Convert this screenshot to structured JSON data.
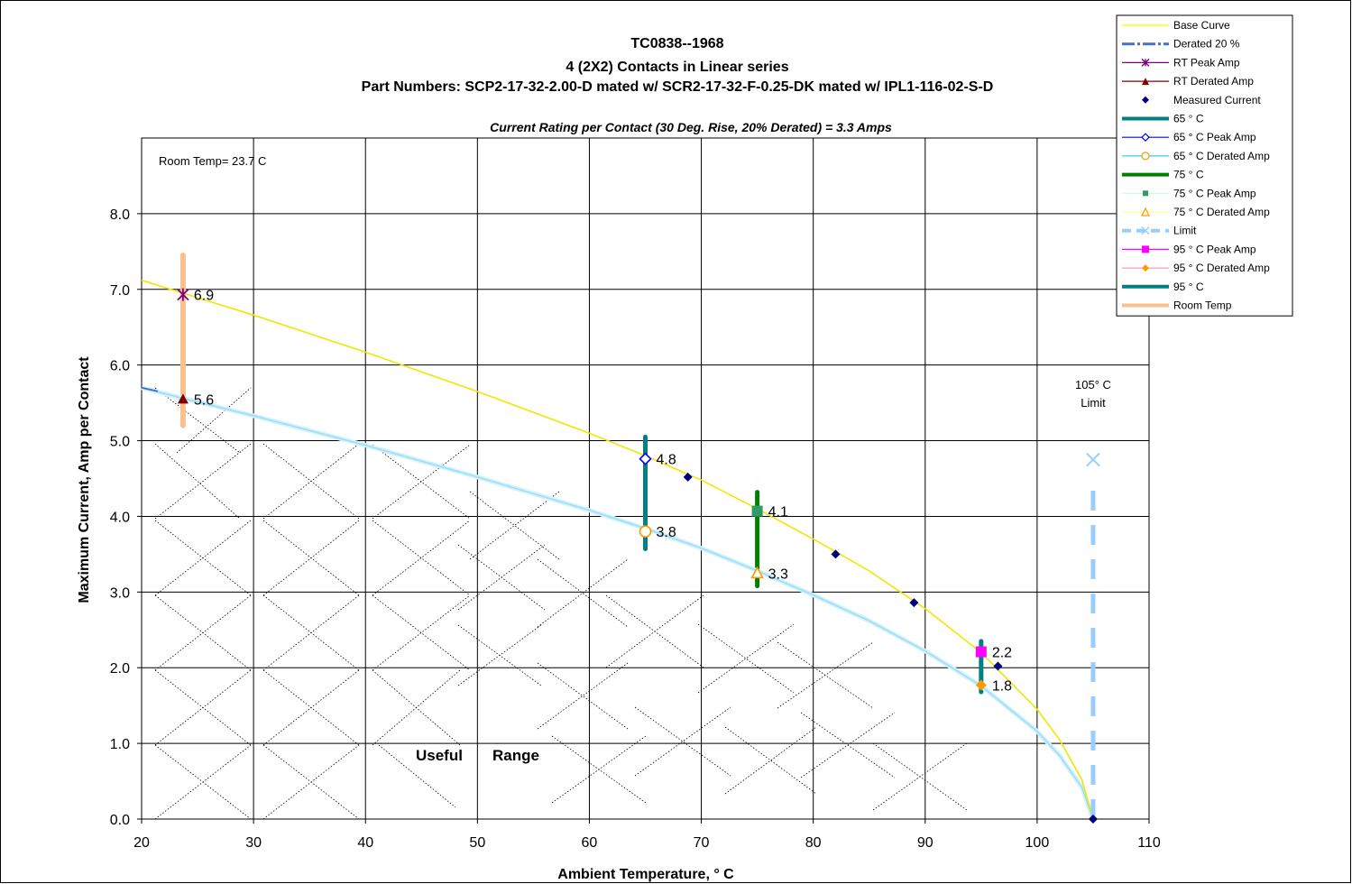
{
  "chart_data": {
    "type": "line",
    "title_lines": [
      "TC0838--1968",
      "4 (2X2) Contacts in Linear series",
      "Part Numbers: SCP2-17-32-2.00-D mated w/ SCR2-17-32-F-0.25-DK mated w/ IPL1-116-02-S-D"
    ],
    "subtitle": "Current Rating per Contact (30 Deg. Rise, 20% Derated)  = 3.3 Amps",
    "xlabel": "Ambient Temperature,  ° C",
    "ylabel": "Maximum Current, Amp per Contact",
    "xlim": [
      20,
      110
    ],
    "ylim": [
      0,
      9
    ],
    "x_ticks": [
      20,
      30,
      40,
      50,
      60,
      70,
      80,
      90,
      100,
      110
    ],
    "x_tick_labels": [
      "20",
      "30",
      "40",
      "50",
      "60",
      "70",
      "80",
      "90",
      "100",
      "110"
    ],
    "y_ticks": [
      0,
      1,
      2,
      3,
      4,
      5,
      6,
      7,
      8
    ],
    "y_tick_labels": [
      "0.0",
      "1.0",
      "2.0",
      "3.0",
      "4.0",
      "5.0",
      "6.0",
      "7.0",
      "8.0"
    ],
    "grid": true,
    "legend_position": "top-right",
    "room_temp_note": "Room Temp= 23.7 C",
    "limit_note_lines": [
      "105° C",
      "Limit"
    ],
    "useful_range_words": [
      "Useful",
      "Range"
    ],
    "base_curve": {
      "name": "Base Curve",
      "color": "#ffff00",
      "x": [
        20,
        23.7,
        30,
        40,
        50,
        60,
        65,
        70,
        75,
        80,
        85,
        90,
        95,
        100,
        102,
        104,
        105
      ],
      "y": [
        7.12,
        6.95,
        6.66,
        6.17,
        5.65,
        5.1,
        4.8,
        4.48,
        4.1,
        3.7,
        3.28,
        2.78,
        2.2,
        1.45,
        1.05,
        0.52,
        0
      ]
    },
    "derated_curve": {
      "name": "Derated 20 %",
      "color": "#b8e8f8",
      "x": [
        20,
        23.7,
        30,
        40,
        50,
        60,
        65,
        70,
        75,
        80,
        85,
        90,
        95,
        100,
        102,
        104,
        105
      ],
      "y": [
        5.7,
        5.56,
        5.33,
        4.94,
        4.52,
        4.08,
        3.84,
        3.58,
        3.28,
        2.96,
        2.62,
        2.22,
        1.76,
        1.16,
        0.84,
        0.42,
        0
      ]
    },
    "measured_current": {
      "name": "Measured Current",
      "color": "#000080",
      "x": [
        68.8,
        82,
        89,
        96.5,
        105
      ],
      "y": [
        4.52,
        3.5,
        2.86,
        2.02,
        0
      ]
    },
    "point_labels": [
      {
        "x": 23.7,
        "y": 6.93,
        "text": "6.9",
        "name": "RT Peak Amp",
        "color": "#800080",
        "marker": "star"
      },
      {
        "x": 23.7,
        "y": 5.55,
        "text": "5.6",
        "name": "RT Derated Amp",
        "color": "#800000",
        "marker": "triangle"
      },
      {
        "x": 65,
        "y": 4.76,
        "text": "4.8",
        "name": "65  ° C Peak Amp",
        "color": "#0000ff",
        "marker": "diamond-open"
      },
      {
        "x": 65,
        "y": 3.8,
        "text": "3.8",
        "name": "65  ° C Derated Amp",
        "color": "#ff9900",
        "marker": "circle-open"
      },
      {
        "x": 75,
        "y": 4.07,
        "text": "4.1",
        "name": "75  ° C Peak Amp",
        "color": "#339966",
        "marker": "square"
      },
      {
        "x": 75,
        "y": 3.25,
        "text": "3.3",
        "name": "75  ° C Derated Amp",
        "color": "#ff9900",
        "marker": "triangle-open"
      },
      {
        "x": 95,
        "y": 2.21,
        "text": "2.2",
        "name": "95  ° C Peak Amp",
        "color": "#ff00ff",
        "marker": "square"
      },
      {
        "x": 95,
        "y": 1.77,
        "text": "1.8",
        "name": "95  ° C Derated Amp",
        "color": "#ff9900",
        "marker": "diamond"
      }
    ],
    "vertical_bars": [
      {
        "name": "Room Temp",
        "x": 23.7,
        "y_min": 5.2,
        "y_max": 7.45,
        "color": "#fac090",
        "width": 6
      },
      {
        "name": "65 ° C",
        "x": 65,
        "y_min": 3.57,
        "y_max": 5.05,
        "color": "#008080",
        "width": 5
      },
      {
        "name": "75 ° C",
        "x": 75,
        "y_min": 3.08,
        "y_max": 4.32,
        "color": "#008000",
        "width": 5
      },
      {
        "name": "95 ° C",
        "x": 95,
        "y_min": 1.68,
        "y_max": 2.35,
        "color": "#008080",
        "width": 5
      }
    ],
    "limit_line": {
      "name": "Limit",
      "x": 105,
      "y_min": 0,
      "y_max": 4.75,
      "color": "#99ccff"
    },
    "legend": [
      {
        "label": "Base Curve",
        "color": "#ffff00",
        "kind": "line",
        "width": 1.5
      },
      {
        "label": "Derated 20 %",
        "color": "#4472c4",
        "kind": "dashdot",
        "width": 3
      },
      {
        "label": "RT Peak Amp",
        "color": "#800080",
        "kind": "star"
      },
      {
        "label": "RT Derated Amp",
        "color": "#800000",
        "kind": "triangle"
      },
      {
        "label": "Measured Current",
        "color": "#000080",
        "kind": "diamond-only"
      },
      {
        "label": "65 ° C",
        "color": "#008080",
        "kind": "line",
        "width": 4
      },
      {
        "label": "65  ° C Peak Amp",
        "color": "#0000ff",
        "kind": "diamond-open"
      },
      {
        "label": "65  ° C Derated Amp",
        "color": "#33ccff",
        "kind": "circle-open"
      },
      {
        "label": "75  ° C",
        "color": "#008000",
        "kind": "line",
        "width": 4
      },
      {
        "label": "75  ° C Peak Amp",
        "color": "#ccffcc",
        "kind": "square-small"
      },
      {
        "label": "75  ° C Derated Amp",
        "color": "#ffff99",
        "kind": "triangle-open"
      },
      {
        "label": "Limit",
        "color": "#99ccff",
        "kind": "limit"
      },
      {
        "label": "95  ° C Peak Amp",
        "color": "#ff00ff",
        "kind": "square"
      },
      {
        "label": "95  ° C Derated Amp",
        "color": "#ff99cc",
        "kind": "diamond-orange"
      },
      {
        "label": "95  ° C",
        "color": "#008080",
        "kind": "line",
        "width": 4
      },
      {
        "label": "Room Temp",
        "color": "#fac090",
        "kind": "line",
        "width": 4
      }
    ]
  }
}
